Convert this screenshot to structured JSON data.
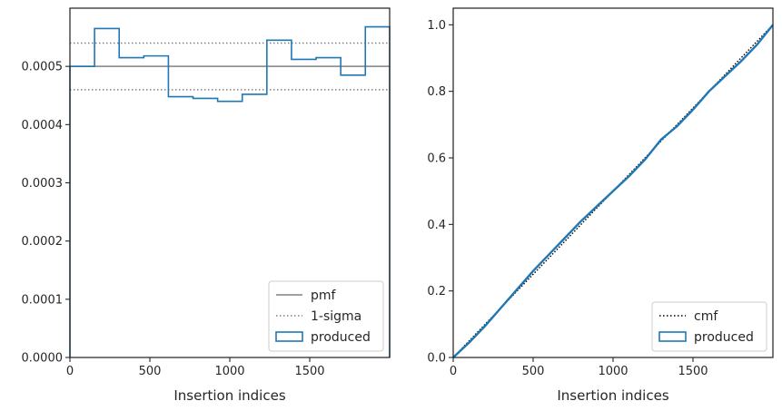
{
  "chart_data": [
    {
      "type": "step",
      "xlabel": "Insertion indices",
      "ylabel": "",
      "xlim": [
        0,
        2000
      ],
      "ylim": [
        0,
        0.0006
      ],
      "xticks": [
        0,
        500,
        1000,
        1500
      ],
      "xtick_labels": [
        "0",
        "500",
        "1000",
        "1500"
      ],
      "yticks": [
        0,
        0.0001,
        0.0002,
        0.0003,
        0.0004,
        0.0005
      ],
      "ytick_labels": [
        "0.0000",
        "0.0001",
        "0.0002",
        "0.0003",
        "0.0004",
        "0.0005"
      ],
      "bin_edges": [
        0,
        154,
        308,
        462,
        616,
        770,
        924,
        1078,
        1232,
        1386,
        1540,
        1694,
        1848,
        2000
      ],
      "series": [
        {
          "name": "pmf",
          "style": "solid",
          "color": "#808080",
          "y": 0.0005
        },
        {
          "name": "1-sigma",
          "style": "dotted",
          "color": "#808080",
          "y": [
            0.00046,
            0.00054
          ]
        },
        {
          "name": "produced",
          "style": "step",
          "color": "#1f77b4",
          "values": [
            0.0005,
            0.000565,
            0.000515,
            0.000518,
            0.000448,
            0.000445,
            0.00044,
            0.000452,
            0.000545,
            0.000512,
            0.000515,
            0.000485,
            0.000568
          ]
        }
      ],
      "legend_position": "lower right"
    },
    {
      "type": "line",
      "xlabel": "Insertion indices",
      "ylabel": "",
      "xlim": [
        0,
        2000
      ],
      "ylim": [
        0,
        1.05
      ],
      "xticks": [
        0,
        500,
        1000,
        1500
      ],
      "xtick_labels": [
        "0",
        "500",
        "1000",
        "1500"
      ],
      "yticks": [
        0,
        0.2,
        0.4,
        0.6,
        0.8,
        1.0
      ],
      "ytick_labels": [
        "0.0",
        "0.2",
        "0.4",
        "0.6",
        "0.8",
        "1.0"
      ],
      "series": [
        {
          "name": "cmf",
          "style": "dotted",
          "color": "#000000",
          "x": [
            0,
            2000
          ],
          "y": [
            0,
            1.0
          ]
        },
        {
          "name": "produced",
          "style": "solid",
          "color": "#1f77b4",
          "x": [
            0,
            100,
            200,
            300,
            400,
            500,
            600,
            700,
            800,
            900,
            1000,
            1100,
            1200,
            1300,
            1400,
            1500,
            1600,
            1700,
            1800,
            1900,
            2000
          ],
          "y": [
            0,
            0.045,
            0.095,
            0.15,
            0.205,
            0.26,
            0.31,
            0.36,
            0.41,
            0.455,
            0.5,
            0.545,
            0.595,
            0.655,
            0.695,
            0.745,
            0.8,
            0.845,
            0.89,
            0.94,
            1.0
          ]
        }
      ],
      "legend_position": "lower right"
    }
  ]
}
